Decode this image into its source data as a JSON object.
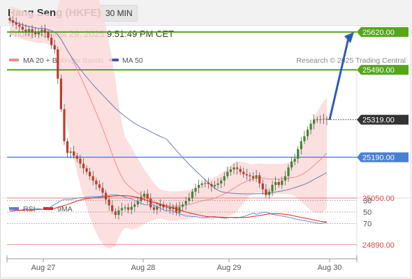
{
  "header": {
    "title": "Hang Seng (HKFE)",
    "timeframe": "30 MIN",
    "datetime": "Friday, August 29, 2025 9:51:49 PM CET"
  },
  "legend": {
    "items": [
      {
        "label": "MA 20 + Bollinger Bands",
        "color": "#f08c8c"
      },
      {
        "label": "MA 50",
        "color": "#3d5a99"
      }
    ],
    "credit": "Research © 2025 Trading Central"
  },
  "rsi_legend": {
    "items": [
      {
        "label": "RSI",
        "color": "#5b7fd6"
      },
      {
        "label": "9MA",
        "color": "#e02020"
      }
    ]
  },
  "levels": {
    "green": [
      25620.0,
      25490.0
    ],
    "last": 25319.0,
    "blue": [
      25190.0
    ],
    "red": [
      25050.0,
      24890.0
    ],
    "labels": [
      "25620.00",
      "25490.00",
      "25319.00",
      "25190.00",
      "25050.00",
      "24890.00"
    ]
  },
  "colors": {
    "green": "#55a619",
    "blue": "#4a7fd4",
    "red": "#d97070",
    "last": "#333333",
    "arrow": "#2b5db5",
    "candle_up": "#3d8a2e",
    "candle_down": "#c0392b"
  },
  "chart_data": [
    {
      "type": "candlestick",
      "ylim": [
        24800,
        25800
      ],
      "x_ticks": [
        "Aug 27",
        "Aug 28",
        "Aug 29",
        "Aug 30"
      ],
      "close": [
        25660,
        25652,
        25645,
        25638,
        25628,
        25622,
        25630,
        25618,
        25612,
        25620,
        25628,
        25618,
        25600,
        25575,
        25560,
        25460,
        25355,
        25245,
        25205,
        25210,
        25195,
        25185,
        25168,
        25152,
        25140,
        25125,
        25110,
        25097,
        25085,
        25068,
        25045,
        25025,
        25005,
        24992,
        25008,
        25015,
        25018,
        25010,
        25020,
        25028,
        25040,
        25055,
        25065,
        25048,
        25018,
        25010,
        25022,
        25028,
        25018,
        25018,
        25012,
        25020,
        25000,
        25020,
        25028,
        25040,
        25050,
        25072,
        25085,
        25095,
        25100,
        25102,
        25098,
        25090,
        25095,
        25100,
        25110,
        25125,
        25140,
        25148,
        25155,
        25150,
        25140,
        25132,
        25128,
        25125,
        25118,
        25128,
        25100,
        25080,
        25060,
        25072,
        25095,
        25105,
        25095,
        25110,
        25125,
        25155,
        25175,
        25185,
        25218,
        25245,
        25262,
        25285,
        25305,
        25320,
        25318,
        25320,
        25322,
        25319
      ],
      "rsi": [
        48,
        48,
        46,
        47,
        46,
        44,
        46,
        45,
        44,
        44,
        45,
        46,
        44,
        40,
        37,
        34,
        30,
        28,
        28,
        28,
        27,
        26,
        25,
        25,
        24,
        24,
        23,
        23,
        23,
        22,
        22,
        21,
        20,
        20,
        21,
        22,
        24,
        26,
        27,
        30,
        32,
        35,
        37,
        38,
        37,
        38,
        41,
        43,
        46,
        48,
        47,
        48,
        51,
        53,
        55,
        57,
        57,
        58,
        58,
        59,
        60,
        60,
        59,
        58,
        58,
        59,
        60,
        61,
        60,
        59,
        60,
        60,
        59,
        58,
        56,
        54,
        52,
        54,
        52,
        51,
        50,
        52,
        54,
        55,
        56,
        57,
        58,
        59,
        60,
        62,
        63,
        64,
        65,
        66,
        67,
        68,
        69,
        70,
        69,
        68
      ],
      "rsi_levels": [
        70,
        50,
        30
      ],
      "rsi_ylim": [
        10,
        90
      ]
    }
  ]
}
